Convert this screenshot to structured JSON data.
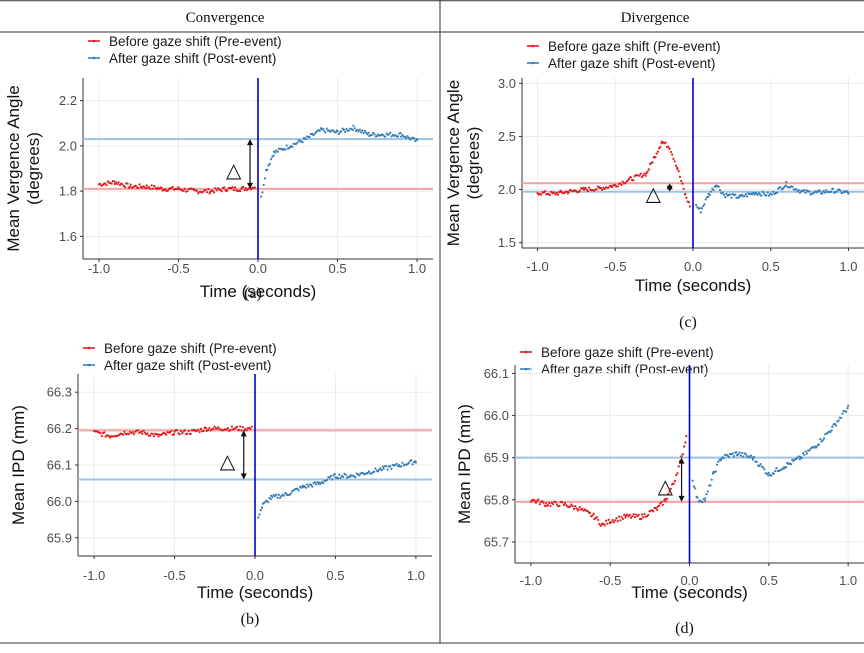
{
  "headers": {
    "left": "Convergence",
    "right": "Divergence"
  },
  "colors": {
    "pre": "#e41a1c",
    "post": "#377eb8",
    "pre_line": "#f4a3a3",
    "post_line": "#9ec3df",
    "event_line": "#0000cc",
    "grid": "#ebebeb"
  },
  "chart_data": [
    {
      "id": "a",
      "type": "scatter",
      "panel_label": "(a)",
      "xlabel": "Time (seconds)",
      "ylabel": [
        "Mean Vergence Angle",
        "(degrees)"
      ],
      "xlim": [
        -1.1,
        1.1
      ],
      "ylim": [
        1.5,
        2.3
      ],
      "xticks": [
        -1.0,
        -0.5,
        0.0,
        0.5,
        1.0
      ],
      "xtick_labels": [
        "-1.0",
        "-0.5",
        "0.0",
        "0.5",
        "1.0"
      ],
      "yticks": [
        1.6,
        1.8,
        2.0,
        2.2
      ],
      "ytick_labels": [
        "1.6",
        "1.8",
        "2.0",
        "2.2"
      ],
      "legend": [
        "Before gaze shift (Pre-event)",
        "After gaze shift (Post-event)"
      ],
      "pre_mean": 1.81,
      "post_mean": 2.03,
      "event_x": 0.0,
      "delta_label": "△",
      "delta_x": -0.05,
      "series": [
        {
          "name": "Before gaze shift (Pre-event)",
          "color": "#e41a1c",
          "points": [
            [
              -1.0,
              1.83
            ],
            [
              -0.9,
              1.84
            ],
            [
              -0.8,
              1.82
            ],
            [
              -0.7,
              1.82
            ],
            [
              -0.6,
              1.81
            ],
            [
              -0.5,
              1.81
            ],
            [
              -0.4,
              1.8
            ],
            [
              -0.3,
              1.8
            ],
            [
              -0.2,
              1.81
            ],
            [
              -0.1,
              1.81
            ],
            [
              -0.02,
              1.82
            ]
          ]
        },
        {
          "name": "After gaze shift (Post-event)",
          "color": "#377eb8",
          "points": [
            [
              0.02,
              1.77
            ],
            [
              0.05,
              1.89
            ],
            [
              0.1,
              1.97
            ],
            [
              0.2,
              2.0
            ],
            [
              0.3,
              2.03
            ],
            [
              0.4,
              2.07
            ],
            [
              0.5,
              2.06
            ],
            [
              0.6,
              2.08
            ],
            [
              0.7,
              2.05
            ],
            [
              0.8,
              2.05
            ],
            [
              0.9,
              2.05
            ],
            [
              1.0,
              2.02
            ]
          ]
        }
      ]
    },
    {
      "id": "c",
      "type": "scatter",
      "panel_label": "(c)",
      "xlabel": "Time (seconds)",
      "ylabel": [
        "Mean Vergence Angle",
        "(degrees)"
      ],
      "xlim": [
        -1.1,
        1.1
      ],
      "ylim": [
        1.45,
        3.05
      ],
      "xticks": [
        -1.0,
        -0.5,
        0.0,
        0.5,
        1.0
      ],
      "xtick_labels": [
        "-1.0",
        "-0.5",
        "0.0",
        "0.5",
        "1.0"
      ],
      "yticks": [
        1.5,
        2.0,
        2.5,
        3.0
      ],
      "ytick_labels": [
        "1.5",
        "2.0",
        "2.5",
        "3.0"
      ],
      "legend": [
        "Before gaze shift (Pre-event)",
        "After gaze shift (Post-event)"
      ],
      "pre_mean": 2.06,
      "post_mean": 1.98,
      "event_x": 0.0,
      "delta_label": "△",
      "delta_x": -0.15,
      "series": [
        {
          "name": "Before gaze shift (Pre-event)",
          "color": "#e41a1c",
          "points": [
            [
              -1.0,
              1.97
            ],
            [
              -0.9,
              1.96
            ],
            [
              -0.8,
              1.98
            ],
            [
              -0.7,
              2.0
            ],
            [
              -0.6,
              2.01
            ],
            [
              -0.5,
              2.04
            ],
            [
              -0.4,
              2.1
            ],
            [
              -0.3,
              2.15
            ],
            [
              -0.25,
              2.3
            ],
            [
              -0.2,
              2.45
            ],
            [
              -0.15,
              2.4
            ],
            [
              -0.1,
              2.2
            ],
            [
              -0.05,
              1.95
            ],
            [
              -0.02,
              1.85
            ]
          ]
        },
        {
          "name": "After gaze shift (Post-event)",
          "color": "#377eb8",
          "points": [
            [
              0.02,
              1.85
            ],
            [
              0.05,
              1.8
            ],
            [
              0.1,
              1.95
            ],
            [
              0.15,
              2.05
            ],
            [
              0.2,
              1.95
            ],
            [
              0.3,
              1.93
            ],
            [
              0.4,
              1.97
            ],
            [
              0.5,
              1.95
            ],
            [
              0.6,
              2.05
            ],
            [
              0.7,
              1.98
            ],
            [
              0.8,
              1.97
            ],
            [
              0.9,
              1.99
            ],
            [
              1.0,
              1.97
            ]
          ]
        }
      ]
    },
    {
      "id": "b",
      "type": "scatter",
      "panel_label": "(b)",
      "xlabel": "Time (seconds)",
      "ylabel": [
        "Mean IPD (mm)"
      ],
      "xlim": [
        -1.1,
        1.1
      ],
      "ylim": [
        65.85,
        66.35
      ],
      "xticks": [
        -1.0,
        -0.5,
        0.0,
        0.5,
        1.0
      ],
      "xtick_labels": [
        "-1.0",
        "-0.5",
        "0.0",
        "0.5",
        "1.0"
      ],
      "yticks": [
        65.9,
        66.0,
        66.1,
        66.2,
        66.3
      ],
      "ytick_labels": [
        "65.9",
        "66.0",
        "66.1",
        "66.2",
        "66.3"
      ],
      "legend": [
        "Before gaze shift (Pre-event)",
        "After gaze shift (Post-event)"
      ],
      "pre_mean": 66.195,
      "post_mean": 66.06,
      "event_x": 0.0,
      "delta_label": "△",
      "delta_x": -0.07,
      "series": [
        {
          "name": "Before gaze shift (Pre-event)",
          "color": "#e41a1c",
          "points": [
            [
              -1.0,
              66.19
            ],
            [
              -0.9,
              66.18
            ],
            [
              -0.8,
              66.19
            ],
            [
              -0.7,
              66.19
            ],
            [
              -0.6,
              66.18
            ],
            [
              -0.5,
              66.19
            ],
            [
              -0.4,
              66.19
            ],
            [
              -0.3,
              66.2
            ],
            [
              -0.2,
              66.2
            ],
            [
              -0.1,
              66.2
            ],
            [
              -0.02,
              66.2
            ]
          ]
        },
        {
          "name": "After gaze shift (Post-event)",
          "color": "#377eb8",
          "points": [
            [
              0.02,
              65.96
            ],
            [
              0.05,
              65.99
            ],
            [
              0.1,
              66.01
            ],
            [
              0.2,
              66.02
            ],
            [
              0.3,
              66.04
            ],
            [
              0.4,
              66.05
            ],
            [
              0.5,
              66.07
            ],
            [
              0.6,
              66.07
            ],
            [
              0.7,
              66.08
            ],
            [
              0.8,
              66.09
            ],
            [
              0.9,
              66.1
            ],
            [
              1.0,
              66.11
            ]
          ]
        }
      ]
    },
    {
      "id": "d",
      "type": "scatter",
      "panel_label": "(d)",
      "xlabel": "Time (seconds)",
      "ylabel": [
        "Mean IPD (mm)"
      ],
      "xlim": [
        -1.1,
        1.1
      ],
      "ylim": [
        65.65,
        66.12
      ],
      "xticks": [
        -1.0,
        -0.5,
        0.0,
        0.5,
        1.0
      ],
      "xtick_labels": [
        "-1.0",
        "-0.5",
        "0.0",
        "0.5",
        "1.0"
      ],
      "yticks": [
        65.7,
        65.8,
        65.9,
        66.0,
        66.1
      ],
      "ytick_labels": [
        "65.7",
        "65.8",
        "65.9",
        "66.0",
        "66.1"
      ],
      "legend": [
        "Before gaze shift (Pre-event)",
        "After gaze shift (Post-event)"
      ],
      "pre_mean": 65.795,
      "post_mean": 65.9,
      "event_x": 0.0,
      "delta_label": "△",
      "delta_x": -0.05,
      "series": [
        {
          "name": "Before gaze shift (Pre-event)",
          "color": "#e41a1c",
          "points": [
            [
              -1.0,
              65.8
            ],
            [
              -0.9,
              65.79
            ],
            [
              -0.8,
              65.79
            ],
            [
              -0.7,
              65.78
            ],
            [
              -0.6,
              65.76
            ],
            [
              -0.55,
              65.74
            ],
            [
              -0.5,
              65.75
            ],
            [
              -0.4,
              65.76
            ],
            [
              -0.3,
              65.76
            ],
            [
              -0.2,
              65.78
            ],
            [
              -0.15,
              65.8
            ],
            [
              -0.1,
              65.84
            ],
            [
              -0.05,
              65.9
            ],
            [
              -0.02,
              65.95
            ]
          ]
        },
        {
          "name": "After gaze shift (Post-event)",
          "color": "#377eb8",
          "points": [
            [
              0.02,
              65.85
            ],
            [
              0.05,
              65.8
            ],
            [
              0.1,
              65.8
            ],
            [
              0.15,
              65.86
            ],
            [
              0.2,
              65.9
            ],
            [
              0.3,
              65.91
            ],
            [
              0.4,
              65.9
            ],
            [
              0.5,
              65.86
            ],
            [
              0.6,
              65.88
            ],
            [
              0.7,
              65.9
            ],
            [
              0.8,
              65.93
            ],
            [
              0.9,
              65.97
            ],
            [
              1.0,
              66.02
            ]
          ]
        }
      ]
    }
  ]
}
